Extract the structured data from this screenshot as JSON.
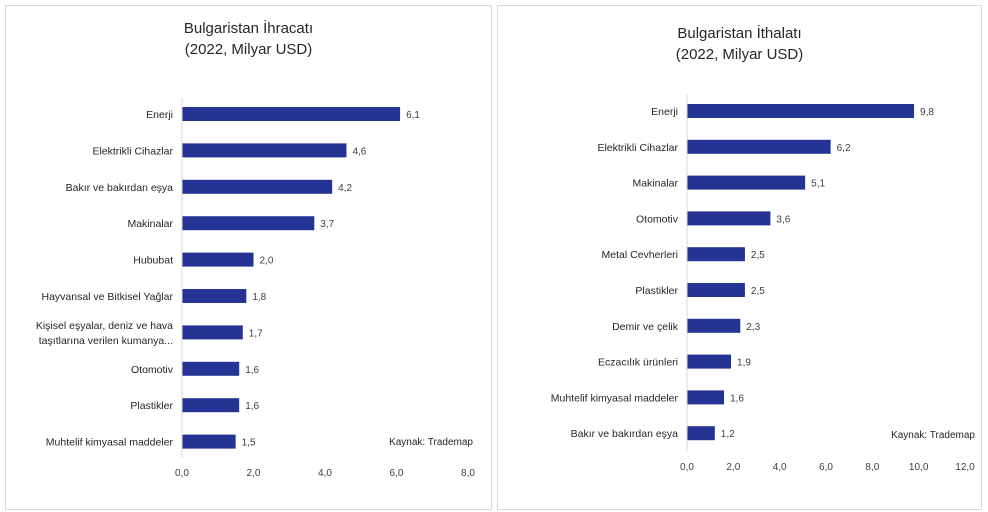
{
  "chart_data": [
    {
      "type": "bar",
      "orientation": "horizontal",
      "title": "Bulgaristan İhracatı",
      "subtitle": "(2022, Milyar USD)",
      "categories": [
        "Enerji",
        "Elektrikli Cihazlar",
        "Bakır ve bakırdan eşya",
        "Makinalar",
        "Hububat",
        "Hayvansal ve Bitkisel Yağlar",
        [
          "Kişisel eşyalar, deniz ve hava",
          "taşıtlarına verilen kumanya..."
        ],
        "Otomotiv",
        "Plastikler",
        "Muhtelif kimyasal maddeler"
      ],
      "values": [
        6.1,
        4.6,
        4.2,
        3.7,
        2.0,
        1.8,
        1.7,
        1.6,
        1.6,
        1.5
      ],
      "value_labels": [
        "6,1",
        "4,6",
        "4,2",
        "3,7",
        "2,0",
        "1,8",
        "1,7",
        "1,6",
        "1,6",
        "1,5"
      ],
      "xlim": [
        0,
        8
      ],
      "ticks": [
        "0,0",
        "2,0",
        "4,0",
        "6,0",
        "8,0"
      ],
      "grid": false,
      "source_note": "Kaynak: Trademap",
      "bar_color": "#253494"
    },
    {
      "type": "bar",
      "orientation": "horizontal",
      "title": "Bulgaristan İthalatı",
      "subtitle": "(2022, Milyar USD)",
      "categories": [
        "Enerji",
        "Elektrikli Cihazlar",
        "Makinalar",
        "Otomotiv",
        "Metal Cevherleri",
        "Plastikler",
        "Demir ve çelik",
        "Eczacılık ürünleri",
        "Muhtelif kimyasal maddeler",
        "Bakır ve bakırdan eşya"
      ],
      "values": [
        9.8,
        6.2,
        5.1,
        3.6,
        2.5,
        2.5,
        2.3,
        1.9,
        1.6,
        1.2
      ],
      "value_labels": [
        "9,8",
        "6,2",
        "5,1",
        "3,6",
        "2,5",
        "2,5",
        "2,3",
        "1,9",
        "1,6",
        "1,2"
      ],
      "xlim": [
        0,
        12
      ],
      "ticks": [
        "0,0",
        "2,0",
        "4,0",
        "6,0",
        "8,0",
        "10,0",
        "12,0"
      ],
      "grid": false,
      "source_note": "Kaynak: Trademap",
      "bar_color": "#253494"
    }
  ]
}
